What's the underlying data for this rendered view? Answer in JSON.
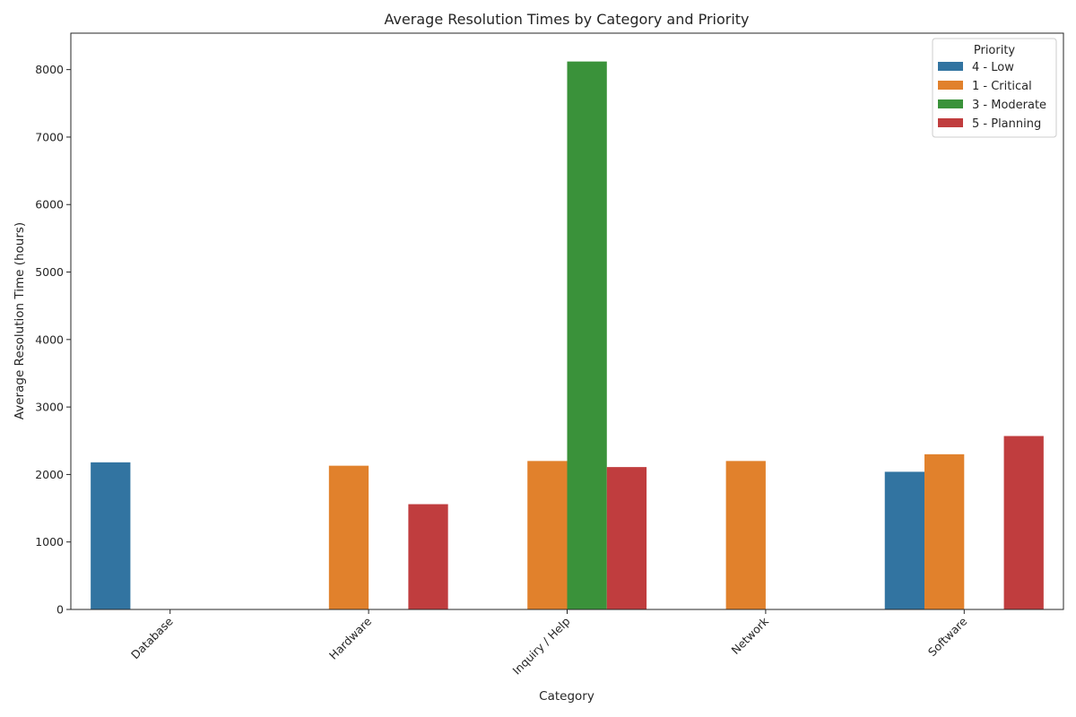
{
  "chart_data": {
    "type": "bar",
    "title": "Average Resolution Times by Category and Priority",
    "xlabel": "Category",
    "ylabel": "Average Resolution Time (hours)",
    "categories": [
      "Database",
      "Hardware",
      "Inquiry / Help",
      "Network",
      "Software"
    ],
    "ylim": [
      0,
      8540
    ],
    "yticks": [
      0,
      1000,
      2000,
      3000,
      4000,
      5000,
      6000,
      7000,
      8000
    ],
    "grid": false,
    "legend": {
      "title": "Priority",
      "placement": "top-right"
    },
    "series": [
      {
        "name": "4 - Low",
        "color": "#3274a1",
        "values": [
          2180,
          null,
          null,
          null,
          2040
        ]
      },
      {
        "name": "1 - Critical",
        "color": "#e1812c",
        "values": [
          null,
          2130,
          2200,
          2200,
          2300
        ]
      },
      {
        "name": "3 - Moderate",
        "color": "#3a923a",
        "values": [
          null,
          null,
          8120,
          null,
          null
        ]
      },
      {
        "name": "5 - Planning",
        "color": "#c03d3e",
        "values": [
          null,
          1560,
          2110,
          null,
          2570
        ]
      }
    ]
  }
}
